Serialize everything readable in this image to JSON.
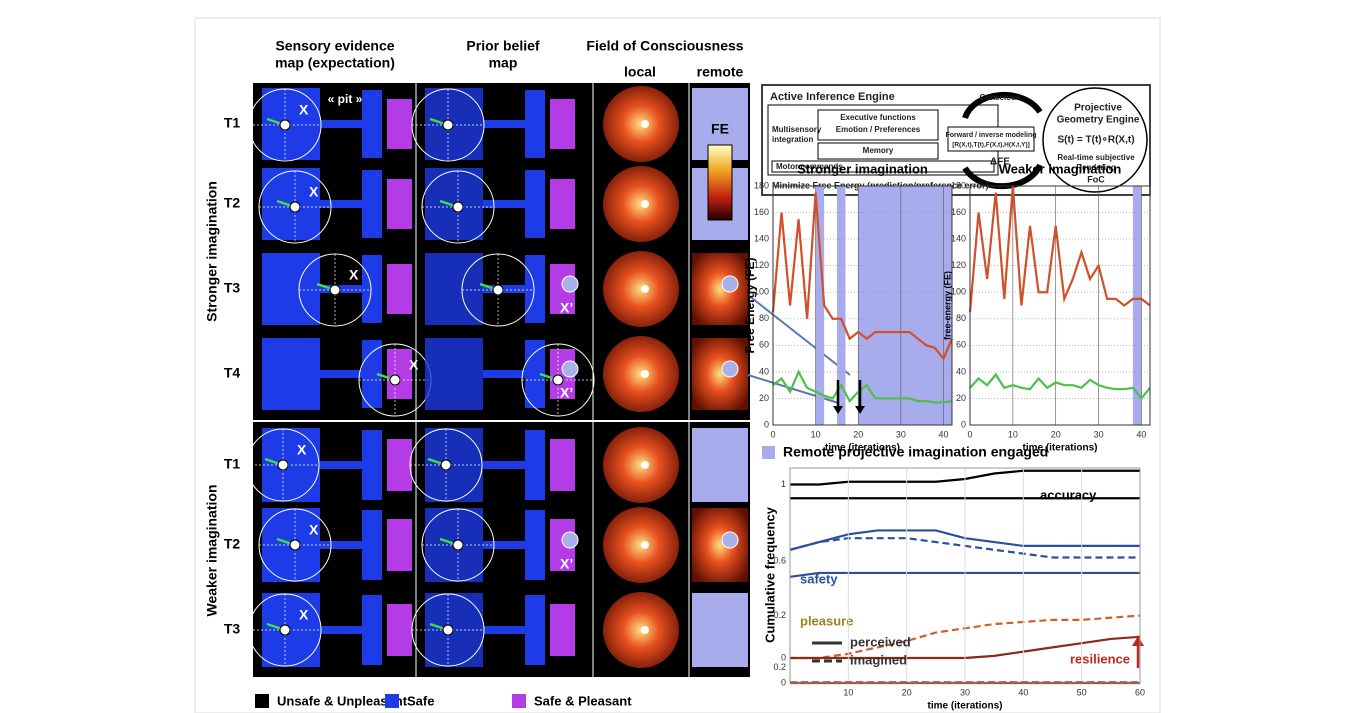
{
  "figure": {
    "column_headers": [
      [
        "Sensory evidence",
        "map (expectation)"
      ],
      [
        "Prior belief",
        "map"
      ],
      [
        "Field of Consciousness"
      ]
    ],
    "foc_subheaders": [
      "local",
      "remote"
    ],
    "groups": [
      {
        "label": "Stronger imagination",
        "rows": [
          {
            "label": "T1",
            "marks": [
              "X"
            ]
          },
          {
            "label": "T2",
            "marks": [
              "X"
            ]
          },
          {
            "label": "T3",
            "marks": [
              "X",
              "X’"
            ]
          },
          {
            "label": "T4",
            "marks": [
              "X",
              "X’"
            ]
          }
        ]
      },
      {
        "label": "Weaker imagination",
        "rows": [
          {
            "label": "T1",
            "marks": [
              "X"
            ]
          },
          {
            "label": "T2",
            "marks": [
              "X",
              "X’"
            ]
          },
          {
            "label": "T3",
            "marks": [
              "X"
            ]
          }
        ]
      }
    ],
    "pit_label": "« pit »",
    "fe_colorbar_label": "FE",
    "legend": [
      {
        "label": "Unsafe & Unpleasant",
        "color": "#000000"
      },
      {
        "label": "Safe",
        "color": "#1d3be6"
      },
      {
        "label": "Safe & Pleasant",
        "color": "#b43ce6"
      }
    ]
  },
  "diagram": {
    "title": "Active Inference Engine",
    "multisensory": "Multisensory",
    "integration": "integration",
    "executive": "Executive functions",
    "emotion": "Emotion / Preferences",
    "memory": "Memory",
    "motor": "Motor commands",
    "minimize": "Minimize Free Energy (prediction/preference error)",
    "conscious": "Conscious",
    "forward": "Forward / inverse modeling",
    "formula_r": "[R(X,t),T(t),F(X,t),H(X,t,Y)]",
    "delta_fe": "ΔFE",
    "projective": "Projective",
    "geometry": "Geometry Engine",
    "formula_s": "S(t) = T(t)∘R(X,t)",
    "realtime": "Real-time subjective",
    "rendering": "Rendering",
    "foc": "FoC"
  },
  "imagination_legend": {
    "label": "Remote projective imagination engaged",
    "color": "#a9acec"
  },
  "chart_data": [
    {
      "type": "line",
      "title": "Stronger imagination",
      "ylabel": "Free Energy (FE)",
      "xlabel": "time (iterations)",
      "x": [
        0,
        2,
        4,
        6,
        8,
        10,
        12,
        14,
        16,
        18,
        20,
        22,
        24,
        26,
        28,
        30,
        32,
        34,
        36,
        38,
        40,
        42
      ],
      "xlim": [
        0,
        42
      ],
      "xticks": [
        0,
        10,
        20,
        30,
        40
      ],
      "ylim": [
        0,
        180
      ],
      "yticks": [
        0,
        20,
        40,
        60,
        80,
        100,
        120,
        140,
        160,
        180
      ],
      "grid": true,
      "spans": [
        [
          10,
          12
        ],
        [
          15,
          17
        ],
        [
          20,
          42
        ]
      ],
      "series": [
        {
          "color": "#d0502a",
          "values": [
            85,
            160,
            90,
            155,
            80,
            175,
            90,
            80,
            80,
            65,
            70,
            65,
            70,
            70,
            70,
            70,
            70,
            65,
            60,
            58,
            50,
            65
          ]
        },
        {
          "color": "#4cc04a",
          "values": [
            30,
            35,
            25,
            40,
            28,
            25,
            22,
            20,
            30,
            18,
            25,
            30,
            20,
            20,
            20,
            20,
            20,
            18,
            18,
            17,
            17,
            18
          ]
        }
      ]
    },
    {
      "type": "line",
      "title": "Weaker imagination",
      "ylabel": "free-energy (FE)",
      "xlabel": "time (iterations)",
      "x": [
        0,
        2,
        4,
        6,
        8,
        10,
        12,
        14,
        16,
        18,
        20,
        22,
        24,
        26,
        28,
        30,
        32,
        34,
        36,
        38,
        40,
        42
      ],
      "xlim": [
        0,
        42
      ],
      "xticks": [
        0,
        10,
        20,
        30,
        40
      ],
      "ylim": [
        0,
        180
      ],
      "yticks": [
        0,
        20,
        40,
        60,
        80,
        100,
        120,
        140,
        160,
        180
      ],
      "grid": true,
      "spans": [
        [
          38,
          40
        ]
      ],
      "series": [
        {
          "color": "#d0502a",
          "values": [
            85,
            160,
            110,
            175,
            95,
            180,
            90,
            150,
            100,
            100,
            150,
            95,
            110,
            130,
            110,
            120,
            95,
            95,
            90,
            95,
            95,
            90
          ]
        },
        {
          "color": "#4cc04a",
          "values": [
            28,
            35,
            30,
            38,
            28,
            30,
            28,
            27,
            35,
            28,
            32,
            30,
            30,
            28,
            34,
            30,
            28,
            27,
            27,
            28,
            20,
            28
          ]
        }
      ]
    },
    {
      "type": "line",
      "ylabel": "Cumulative frequency",
      "annotation": "accuracy",
      "annotation_color": "#000000",
      "x": [
        0,
        5,
        10,
        15,
        20,
        25,
        30,
        35,
        40,
        45,
        50,
        55,
        60
      ],
      "xlim": [
        0,
        60
      ],
      "ylim": [
        0.9,
        1.06
      ],
      "yticks": [
        1
      ],
      "series": [
        {
          "color": "#000000",
          "values": [
            1.0,
            1.0,
            1.01,
            1.01,
            1.01,
            1.01,
            1.02,
            1.04,
            1.05,
            1.05,
            1.05,
            1.05,
            1.05
          ]
        },
        {
          "color": "#000000",
          "values": [
            0.95,
            0.95,
            0.95,
            0.95,
            0.95,
            0.95,
            0.95,
            0.95,
            0.95,
            0.95,
            0.95,
            0.95,
            0.95
          ]
        }
      ]
    },
    {
      "type": "line",
      "annotation": "safety",
      "annotation_color": "#2a4f9e",
      "x": [
        0,
        5,
        10,
        15,
        20,
        25,
        30,
        35,
        40,
        45,
        50,
        55,
        60
      ],
      "xlim": [
        0,
        60
      ],
      "ylim": [
        0.5,
        0.72
      ],
      "yticks": [
        0.6
      ],
      "series": [
        {
          "color": "#2a4f9e",
          "values": [
            0.63,
            0.65,
            0.67,
            0.68,
            0.68,
            0.68,
            0.66,
            0.65,
            0.64,
            0.64,
            0.64,
            0.64,
            0.64
          ]
        },
        {
          "color": "#2a4f9e",
          "dash": true,
          "values": [
            0.63,
            0.65,
            0.66,
            0.66,
            0.66,
            0.65,
            0.64,
            0.63,
            0.62,
            0.61,
            0.61,
            0.61,
            0.61
          ]
        },
        {
          "color": "#2a4f9e",
          "values": [
            0.56,
            0.57,
            0.57,
            0.57,
            0.57,
            0.57,
            0.57,
            0.57,
            0.57,
            0.57,
            0.57,
            0.57,
            0.57
          ]
        }
      ]
    },
    {
      "type": "line",
      "annotation": "pleasure",
      "annotation_color": "#a08020",
      "callout": "resilience",
      "callout_color": "#c0281c",
      "x": [
        0,
        5,
        10,
        15,
        20,
        25,
        30,
        35,
        40,
        45,
        50,
        55,
        60
      ],
      "xlim": [
        0,
        60
      ],
      "ylim": [
        0,
        0.25
      ],
      "yticks": [
        0,
        0.2
      ],
      "series": [
        {
          "color": "#d0602a",
          "dash": true,
          "values": [
            0,
            0,
            0.02,
            0.05,
            0.08,
            0.12,
            0.14,
            0.16,
            0.17,
            0.18,
            0.18,
            0.19,
            0.2
          ]
        },
        {
          "color": "#8a2a1a",
          "values": [
            0,
            0,
            0,
            0,
            0,
            0,
            0,
            0.01,
            0.03,
            0.05,
            0.07,
            0.09,
            0.1
          ]
        }
      ]
    },
    {
      "type": "line",
      "xlabel": "time (iterations)",
      "legend": [
        {
          "label": "perceived",
          "dash": false
        },
        {
          "label": "imagined",
          "dash": true
        }
      ],
      "x": [
        0,
        5,
        10,
        15,
        20,
        25,
        30,
        35,
        40,
        45,
        50,
        55,
        60
      ],
      "xlim": [
        0,
        60
      ],
      "xticks": [
        10,
        20,
        30,
        40,
        50,
        60
      ],
      "ylim": [
        0,
        0.3
      ],
      "yticks": [
        0,
        0.2
      ],
      "series": [
        {
          "color": "#d0602a",
          "dash": true,
          "values": [
            0.01,
            0.01,
            0.01,
            0.01,
            0.01,
            0.01,
            0.01,
            0.01,
            0.01,
            0.01,
            0.01,
            0.01,
            0.01
          ]
        },
        {
          "color": "#8a2a1a",
          "values": [
            0,
            0,
            0,
            0,
            0,
            0,
            0,
            0,
            0,
            0,
            0,
            0,
            0
          ]
        }
      ]
    }
  ]
}
